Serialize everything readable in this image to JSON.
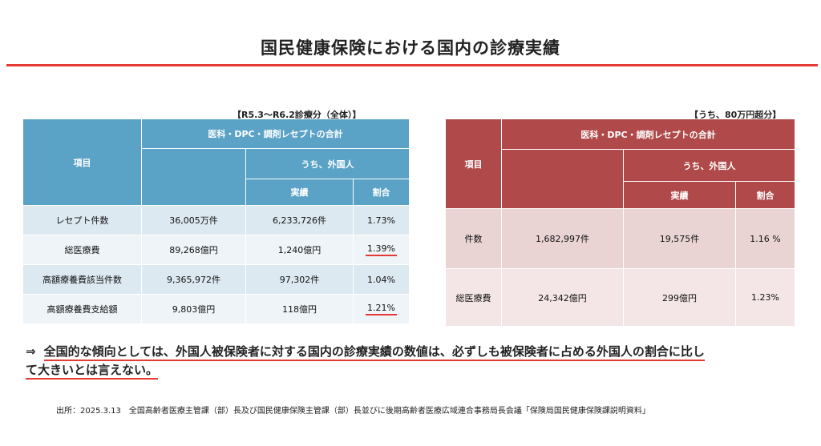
{
  "title": "国民健康保険における国内の診療実績",
  "left_table": {
    "caption": "【R5.3～R6.2診療分（全体）】",
    "header": {
      "item": "項目",
      "group": "医科・DPC・調剤レセプトの合計",
      "sub_group": "うち、外国人",
      "actual": "実績",
      "ratio": "割合"
    },
    "rows": [
      {
        "label": "レセプト件数",
        "total": "36,005万件",
        "foreign": "6,233,726件",
        "ratio": "1.73%"
      },
      {
        "label": "総医療費",
        "total": "89,268億円",
        "foreign": "1,240億円",
        "ratio": "1.39%"
      },
      {
        "label": "高額療養費該当件数",
        "total": "9,365,972件",
        "foreign": "97,302件",
        "ratio": "1.04%"
      },
      {
        "label": "高額療養費支給額",
        "total": "9,803億円",
        "foreign": "118億円",
        "ratio": "1.21%"
      }
    ]
  },
  "right_table": {
    "caption": "【うち、80万円超分】",
    "header": {
      "item": "項目",
      "group": "医科・DPC・調剤レセプトの合計",
      "sub_group": "うち、外国人",
      "actual": "実績",
      "ratio": "割合"
    },
    "rows": [
      {
        "label": "件数",
        "total": "1,682,997件",
        "foreign": "19,575件",
        "ratio": "1.16 %"
      },
      {
        "label": "総医療費",
        "total": "24,342億円",
        "foreign": "299億円",
        "ratio": "1.23%"
      }
    ]
  },
  "conclusion": {
    "arrow": "⇒",
    "line1": "全国的な傾向としては、外国人被保険者に対する国内の診療実績の数値は、必ずしも被保険者に占める外国人の割合に比し",
    "line2": "て大きいとは言えない。"
  },
  "source": "出所：2025.3.13　全国高齢者医療主管課（部）長及び国民健康保険主管課（部）長並びに後期高齢者医療広域連合事務局長会議「保険局国民健康保険課説明資料」",
  "colors": {
    "accent_red": "#e53935",
    "left_header": "#5aa2c6",
    "right_header": "#b04a4a"
  }
}
